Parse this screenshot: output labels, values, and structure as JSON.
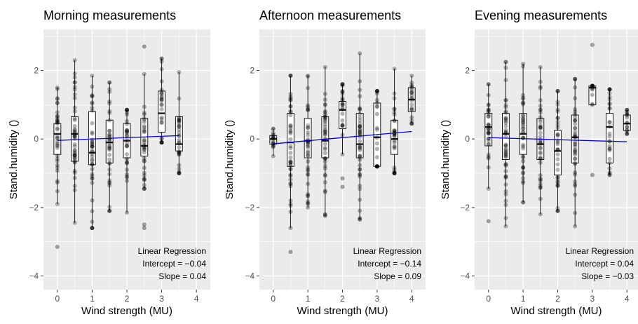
{
  "chart_data": [
    {
      "type": "boxplot",
      "title": "Morning measurements",
      "xlabel": "Wind strength (MU)",
      "ylabel": "Stand.humidity ()",
      "xlim": [
        -0.4,
        4.4
      ],
      "ylim": [
        -4.4,
        3.2
      ],
      "xticks": [
        0,
        1,
        2,
        3,
        4
      ],
      "yticks": [
        -4,
        -2,
        0,
        2
      ],
      "grid": true,
      "boxes": [
        {
          "x": 0.0,
          "q1": -0.45,
          "median": 0.15,
          "q3": 0.45,
          "whisker_low": -1.9,
          "whisker_high": 1.5
        },
        {
          "x": 0.5,
          "q1": -0.65,
          "median": 0.15,
          "q3": 0.65,
          "whisker_low": -2.45,
          "whisker_high": 2.3
        },
        {
          "x": 1.0,
          "q1": -0.75,
          "median": -0.4,
          "q3": 0.8,
          "whisker_low": -2.6,
          "whisker_high": 1.85
        },
        {
          "x": 1.5,
          "q1": -0.7,
          "median": -0.1,
          "q3": 0.55,
          "whisker_low": -2.1,
          "whisker_high": 1.65
        },
        {
          "x": 2.0,
          "q1": -0.55,
          "median": -0.05,
          "q3": 0.45,
          "whisker_low": -2.15,
          "whisker_high": 0.85
        },
        {
          "x": 2.5,
          "q1": -0.5,
          "median": -0.2,
          "q3": 0.6,
          "whisker_low": -1.45,
          "whisker_high": 1.9
        },
        {
          "x": 3.0,
          "q1": 0.2,
          "median": 0.75,
          "q3": 1.4,
          "whisker_low": -0.1,
          "whisker_high": 2.35
        },
        {
          "x": 3.5,
          "q1": -0.35,
          "median": -0.15,
          "q3": 0.65,
          "whisker_low": -1.0,
          "whisker_high": 1.95
        }
      ],
      "outliers": [
        {
          "x": 0.0,
          "y": -3.15
        },
        {
          "x": 2.5,
          "y": -2.5
        },
        {
          "x": 2.5,
          "y": -2.6
        },
        {
          "x": 2.5,
          "y": 2.7
        }
      ],
      "regression": {
        "intercept": -0.04,
        "slope": 0.04,
        "x_range": [
          0,
          3.5
        ]
      },
      "annotation": [
        "Linear Regression",
        "Intercept = −0.04",
        "Slope = 0.04"
      ]
    },
    {
      "type": "boxplot",
      "title": "Afternoon measurements",
      "xlabel": "Wind strength (MU)",
      "ylabel": "Stand.humidity ()",
      "xlim": [
        -0.4,
        4.4
      ],
      "ylim": [
        -4.4,
        3.2
      ],
      "xticks": [
        0,
        1,
        2,
        3,
        4
      ],
      "yticks": [
        -4,
        -2,
        0,
        2
      ],
      "grid": true,
      "boxes": [
        {
          "x": 0.0,
          "q1": -0.15,
          "median": 0.0,
          "q3": 0.1,
          "whisker_low": -0.5,
          "whisker_high": 0.3
        },
        {
          "x": 0.5,
          "q1": -0.8,
          "median": -0.1,
          "q3": 0.75,
          "whisker_low": -2.6,
          "whisker_high": 1.85
        },
        {
          "x": 1.0,
          "q1": -0.55,
          "median": -0.05,
          "q3": 0.6,
          "whisker_low": -2.0,
          "whisker_high": 1.85
        },
        {
          "x": 1.5,
          "q1": -0.55,
          "median": -0.05,
          "q3": 0.65,
          "whisker_low": -2.25,
          "whisker_high": 2.1
        },
        {
          "x": 2.0,
          "q1": 0.3,
          "median": 0.85,
          "q3": 1.1,
          "whisker_low": -0.45,
          "whisker_high": 1.6
        },
        {
          "x": 2.5,
          "q1": -0.55,
          "median": -0.15,
          "q3": 0.75,
          "whisker_low": -2.35,
          "whisker_high": 2.5
        },
        {
          "x": 3.0,
          "q1": -0.8,
          "median": 0.05,
          "q3": 1.05,
          "whisker_low": -0.8,
          "whisker_high": 1.4
        },
        {
          "x": 3.5,
          "q1": -0.45,
          "median": 0.0,
          "q3": 0.55,
          "whisker_low": -1.0,
          "whisker_high": 2.05
        },
        {
          "x": 4.0,
          "q1": 0.8,
          "median": 1.15,
          "q3": 1.5,
          "whisker_low": 0.45,
          "whisker_high": 1.85
        }
      ],
      "outliers": [
        {
          "x": 0.5,
          "y": -3.3
        },
        {
          "x": 2.0,
          "y": -1.15
        },
        {
          "x": 2.0,
          "y": -1.4
        }
      ],
      "regression": {
        "intercept": -0.14,
        "slope": 0.09,
        "x_range": [
          0,
          4
        ]
      },
      "annotation": [
        "Linear Regression",
        "Intercept = −0.14",
        "Slope = 0.09"
      ]
    },
    {
      "type": "boxplot",
      "title": "Evening measurements",
      "xlabel": "Wind strength (MU)",
      "ylabel": "Stand.humidity ()",
      "xlim": [
        -0.4,
        4.4
      ],
      "ylim": [
        -4.4,
        3.2
      ],
      "xticks": [
        0,
        1,
        2,
        3,
        4
      ],
      "yticks": [
        -4,
        -2,
        0,
        2
      ],
      "grid": true,
      "boxes": [
        {
          "x": 0.0,
          "q1": -0.2,
          "median": 0.35,
          "q3": 0.75,
          "whisker_low": -1.45,
          "whisker_high": 1.6
        },
        {
          "x": 0.5,
          "q1": -0.6,
          "median": 0.15,
          "q3": 0.75,
          "whisker_low": -2.55,
          "whisker_high": 2.25
        },
        {
          "x": 1.0,
          "q1": -0.45,
          "median": 0.15,
          "q3": 0.75,
          "whisker_low": -1.85,
          "whisker_high": 2.2
        },
        {
          "x": 1.5,
          "q1": -0.6,
          "median": -0.15,
          "q3": 0.6,
          "whisker_low": -2.2,
          "whisker_high": 2.1
        },
        {
          "x": 2.0,
          "q1": -1.05,
          "median": -0.35,
          "q3": 0.25,
          "whisker_low": -2.1,
          "whisker_high": 1.4
        },
        {
          "x": 2.5,
          "q1": -0.7,
          "median": 0.05,
          "q3": 0.7,
          "whisker_low": -2.55,
          "whisker_high": 1.75
        },
        {
          "x": 3.0,
          "q1": 1.0,
          "median": 1.5,
          "q3": 1.55,
          "whisker_low": 1.0,
          "whisker_high": 1.55
        },
        {
          "x": 3.5,
          "q1": -0.7,
          "median": 0.35,
          "q3": 0.75,
          "whisker_low": -1.05,
          "whisker_high": 1.45
        },
        {
          "x": 4.0,
          "q1": 0.25,
          "median": 0.45,
          "q3": 0.7,
          "whisker_low": 0.15,
          "whisker_high": 0.85
        }
      ],
      "outliers": [
        {
          "x": 0.0,
          "y": -2.4
        },
        {
          "x": 3.0,
          "y": 2.75
        },
        {
          "x": 3.0,
          "y": -1.05
        }
      ],
      "regression": {
        "intercept": 0.04,
        "slope": -0.03,
        "x_range": [
          0,
          4
        ]
      },
      "annotation": [
        "Linear Regression",
        "Intercept = 0.04",
        "Slope = −0.03"
      ]
    }
  ],
  "colors": {
    "panel_bg": "#ebebeb",
    "grid": "#ffffff",
    "box_fill": "#ffffff",
    "box_stroke": "#1a1a1a",
    "point": "#000000",
    "regression_line": "#0000cc",
    "tick_text": "#4d4d4d"
  }
}
